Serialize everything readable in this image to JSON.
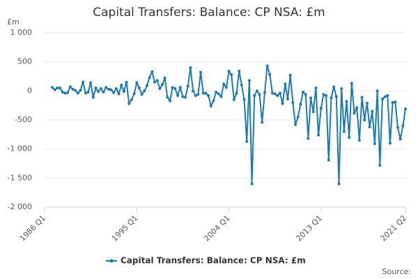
{
  "chart_data": {
    "type": "line",
    "title": "Capital Transfers: Balance: CP NSA: £m",
    "y_unit": "£m",
    "source": "Source:",
    "categories": [
      "1986 Q1",
      null,
      null,
      null,
      null,
      null,
      null,
      null,
      null,
      null,
      null,
      null,
      null,
      null,
      null,
      null,
      null,
      null,
      null,
      null,
      null,
      null,
      null,
      null,
      null,
      null,
      null,
      null,
      null,
      null,
      null,
      null,
      null,
      null,
      null,
      null,
      "1995 Q1",
      null,
      null,
      null,
      null,
      null,
      null,
      null,
      null,
      null,
      null,
      null,
      null,
      null,
      null,
      null,
      null,
      null,
      null,
      null,
      null,
      null,
      null,
      null,
      null,
      null,
      null,
      null,
      null,
      null,
      null,
      null,
      null,
      null,
      null,
      null,
      "2004 Q1",
      null,
      null,
      null,
      null,
      null,
      null,
      null,
      null,
      null,
      null,
      null,
      null,
      null,
      null,
      null,
      null,
      null,
      null,
      null,
      null,
      null,
      null,
      null,
      null,
      null,
      null,
      null,
      null,
      null,
      null,
      null,
      null,
      null,
      null,
      null,
      "2013 Q1",
      null,
      null,
      null,
      null,
      null,
      null,
      null,
      null,
      null,
      null,
      null,
      null,
      null,
      null,
      null,
      null,
      null,
      null,
      null,
      null,
      null,
      null,
      null,
      null,
      null,
      null,
      null,
      null,
      null,
      null,
      null,
      null,
      "2021 Q2"
    ],
    "series": [
      {
        "name": "Capital Transfers: Balance: CP NSA: £m",
        "color": "#1a7ab5",
        "values": [
          null,
          null,
          null,
          60,
          20,
          50,
          50,
          -20,
          -40,
          -30,
          70,
          30,
          10,
          -40,
          10,
          150,
          -40,
          -20,
          140,
          -110,
          50,
          -10,
          40,
          -20,
          60,
          30,
          20,
          -30,
          40,
          -50,
          100,
          -10,
          150,
          -220,
          -150,
          -50,
          140,
          50,
          -60,
          0,
          90,
          230,
          330,
          150,
          180,
          40,
          110,
          220,
          -110,
          -170,
          60,
          40,
          -80,
          60,
          -100,
          -110,
          80,
          400,
          0,
          -80,
          -60,
          320,
          -40,
          -40,
          -80,
          -260,
          -170,
          -20,
          -50,
          -100,
          120,
          60,
          340,
          280,
          -150,
          -40,
          340,
          100,
          -150,
          -870,
          180,
          -1600,
          -80,
          0,
          -60,
          -540,
          -30,
          430,
          280,
          -40,
          -50,
          -80,
          -40,
          -220,
          120,
          -140,
          270,
          -200,
          -580,
          -450,
          -230,
          -20,
          -60,
          -820,
          -120,
          -360,
          50,
          -760,
          -300,
          -60,
          -80,
          -1190,
          -120,
          70,
          -100,
          -1600,
          40,
          -700,
          -180,
          -800,
          130,
          -380,
          -290,
          -850,
          -110,
          -500,
          -210,
          -620,
          -350,
          -910,
          0,
          -1280,
          -140,
          -100,
          -80,
          -900,
          -200,
          -190,
          -630,
          -830,
          -600,
          -310
        ]
      }
    ],
    "ylim": [
      -2000,
      1000
    ],
    "yticks": [
      {
        "value": -2000,
        "label": "-2 000"
      },
      {
        "value": -1500,
        "label": "-1 500"
      },
      {
        "value": -1000,
        "label": "-1 000"
      },
      -500,
      0,
      500,
      {
        "value": 1000,
        "label": "1 000"
      }
    ],
    "grid": true,
    "legend": "bottom"
  }
}
